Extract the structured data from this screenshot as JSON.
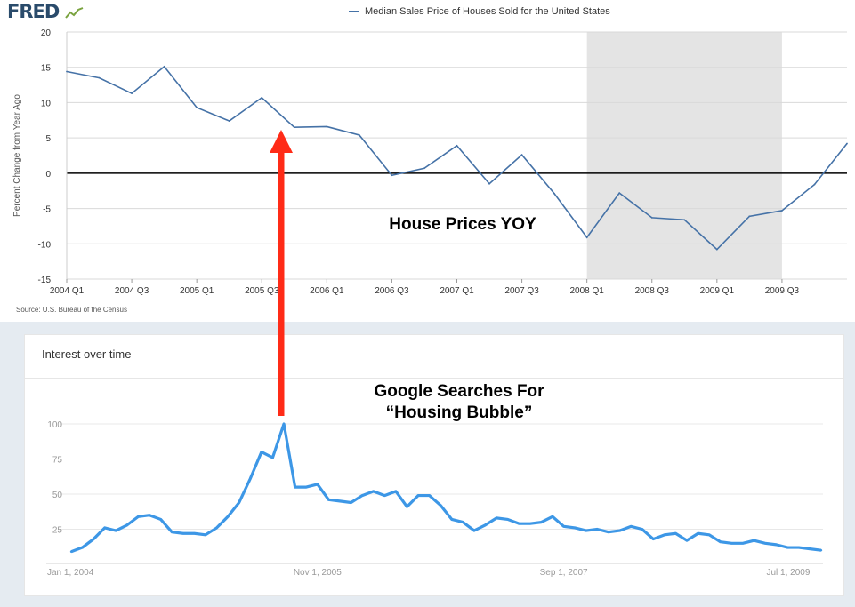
{
  "fred": {
    "logo": "FRED",
    "legend_label": "Median Sales Price of Houses Sold for the United States",
    "source": "Source: U.S. Bureau of the Census"
  },
  "trends": {
    "heading": "Interest over time"
  },
  "annotations": {
    "house_prices": "House Prices YOY",
    "google_line1": "Google Searches For",
    "google_line2": "“Housing Bubble”"
  },
  "colors": {
    "fred_line": "#4572a7",
    "recession_shade": "#e4e4e4",
    "trends_line": "#3d97e6",
    "arrow": "#ff2b17"
  },
  "chart_data": [
    {
      "type": "line",
      "title": "Median Sales Price of Houses Sold for the United States",
      "ylabel": "Percent Change from Year Ago",
      "xlabel": "",
      "ylim": [
        -15,
        20
      ],
      "yticks": [
        20,
        15,
        10,
        5,
        0,
        -5,
        -10,
        -15
      ],
      "x_ticklabels": [
        "2004 Q1",
        "2004 Q3",
        "2005 Q1",
        "2005 Q3",
        "2006 Q1",
        "2006 Q3",
        "2007 Q1",
        "2007 Q3",
        "2008 Q1",
        "2008 Q3",
        "2009 Q1",
        "2009 Q3"
      ],
      "categories": [
        "2004 Q1",
        "2004 Q2",
        "2004 Q3",
        "2004 Q4",
        "2005 Q1",
        "2005 Q2",
        "2005 Q3",
        "2005 Q4",
        "2006 Q1",
        "2006 Q2",
        "2006 Q3",
        "2006 Q4",
        "2007 Q1",
        "2007 Q2",
        "2007 Q3",
        "2007 Q4",
        "2008 Q1",
        "2008 Q2",
        "2008 Q3",
        "2008 Q4",
        "2009 Q1",
        "2009 Q2",
        "2009 Q3",
        "2009 Q4",
        "2010 Q1"
      ],
      "series": [
        {
          "name": "Median Sales Price of Houses Sold for the United States",
          "values": [
            14.4,
            13.5,
            11.3,
            15.1,
            9.3,
            7.4,
            10.7,
            6.5,
            6.6,
            5.4,
            -0.3,
            0.7,
            3.9,
            -1.5,
            2.6,
            -2.9,
            -9.1,
            -2.8,
            -6.3,
            -6.6,
            -10.8,
            -6.1,
            -5.3,
            -1.6,
            4.2
          ]
        }
      ],
      "recession_shading": [
        "2008 Q1",
        "2009 Q3"
      ],
      "grid": true,
      "zero_line": true,
      "legend": "top-center"
    },
    {
      "type": "line",
      "title": "Interest over time",
      "xlabel": "",
      "ylabel": "",
      "ylim": [
        0,
        100
      ],
      "yticks": [
        100,
        75,
        50,
        25
      ],
      "x_ticklabels": [
        "Jan 1, 2004",
        "Nov 1, 2005",
        "Sep 1, 2007",
        "Jul 1, 2009"
      ],
      "x": [
        "2004-01",
        "2004-02",
        "2004-03",
        "2004-04",
        "2004-05",
        "2004-06",
        "2004-07",
        "2004-08",
        "2004-09",
        "2004-10",
        "2004-11",
        "2004-12",
        "2005-01",
        "2005-02",
        "2005-03",
        "2005-04",
        "2005-05",
        "2005-06",
        "2005-07",
        "2005-08",
        "2005-09",
        "2005-10",
        "2005-11",
        "2005-12",
        "2006-01",
        "2006-02",
        "2006-03",
        "2006-04",
        "2006-05",
        "2006-06",
        "2006-07",
        "2006-08",
        "2006-09",
        "2006-10",
        "2006-11",
        "2006-12",
        "2007-01",
        "2007-02",
        "2007-03",
        "2007-04",
        "2007-05",
        "2007-06",
        "2007-07",
        "2007-08",
        "2007-09",
        "2007-10",
        "2007-11",
        "2007-12",
        "2008-01",
        "2008-02",
        "2008-03",
        "2008-04",
        "2008-05",
        "2008-06",
        "2008-07",
        "2008-08",
        "2008-09",
        "2008-10",
        "2008-11",
        "2008-12",
        "2009-01",
        "2009-02",
        "2009-03",
        "2009-04",
        "2009-05",
        "2009-06",
        "2009-07",
        "2009-08"
      ],
      "series": [
        {
          "values": [
            9,
            12,
            18,
            26,
            24,
            28,
            34,
            35,
            32,
            23,
            22,
            22,
            21,
            26,
            34,
            44,
            61,
            80,
            76,
            100,
            55,
            55,
            57,
            46,
            45,
            44,
            49,
            52,
            49,
            52,
            41,
            49,
            49,
            42,
            32,
            30,
            24,
            28,
            33,
            32,
            29,
            29,
            30,
            34,
            27,
            26,
            24,
            25,
            23,
            24,
            27,
            25,
            18,
            21,
            22,
            17,
            22,
            21,
            16,
            15,
            15,
            17,
            15,
            14,
            12,
            12,
            11,
            10
          ]
        }
      ],
      "grid": true,
      "legend": "none"
    }
  ]
}
